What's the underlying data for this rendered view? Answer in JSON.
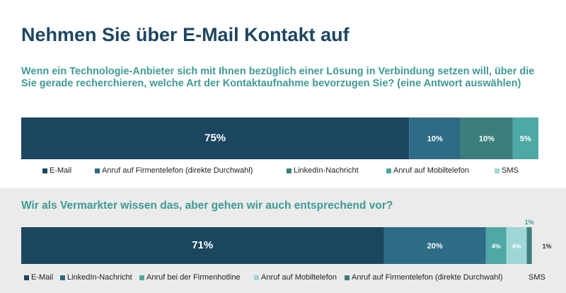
{
  "title": "Nehmen Sie über E-Mail Kontakt auf",
  "colors": {
    "navy": "#1c4560",
    "steel": "#2e6b85",
    "teal_dark": "#3a7f7c",
    "teal": "#4ea8a5",
    "light_teal": "#9fd6d6",
    "heading": "#1d4660",
    "question": "#3e9a94",
    "bottom_bg": "#ebebeb"
  },
  "chart_data": [
    {
      "type": "bar",
      "orientation": "horizontal-stacked",
      "title": "Wenn ein Technologie-Anbieter sich mit Ihnen bezüglich einer Lösung in Verbindung setzen will, über die Sie gerade recherchieren, welche Art der Kontaktaufnahme bevorzugen Sie? (eine Antwort auswählen)",
      "series": [
        {
          "name": "E-Mail",
          "value": 75,
          "label": "75%",
          "color": "#1c4560"
        },
        {
          "name": "Anruf auf Firmentelefon (direkte Durchwahl)",
          "value": 10,
          "label": "10%",
          "color": "#2e6b85"
        },
        {
          "name": "LinkedIn-Nachricht",
          "value": 10,
          "label": "10%",
          "color": "#3a7f7c"
        },
        {
          "name": "Anruf auf Mobiltelefon",
          "value": 5,
          "label": "5%",
          "color": "#4ea8a5"
        },
        {
          "name": "SMS",
          "value": 0,
          "label": "",
          "color": "#9fd6d6"
        }
      ],
      "legend": "bottom"
    },
    {
      "type": "bar",
      "orientation": "horizontal-stacked",
      "title": "Wir als Vermarkter wissen das, aber gehen wir auch entsprechend vor?",
      "series": [
        {
          "name": "E-Mail",
          "value": 71,
          "label": "71%",
          "color": "#1c4560"
        },
        {
          "name": "LinkedIn-Nachricht",
          "value": 20,
          "label": "20%",
          "color": "#2e6b85"
        },
        {
          "name": "Anruf bei der Firmenhotline",
          "value": 4,
          "label": "4%",
          "color": "#4ea8a5"
        },
        {
          "name": "Anruf auf Mobiltelefon",
          "value": 4,
          "label": "4%",
          "color": "#9fd6d6"
        },
        {
          "name": "Anruf auf Firmentelefon (direkte Durchwahl)",
          "value": 1,
          "label": "1%",
          "color": "#3a7f7c"
        },
        {
          "name": "SMS",
          "value": 1,
          "label": "1%",
          "color": "#ebebeb"
        }
      ],
      "legend": "bottom"
    }
  ]
}
